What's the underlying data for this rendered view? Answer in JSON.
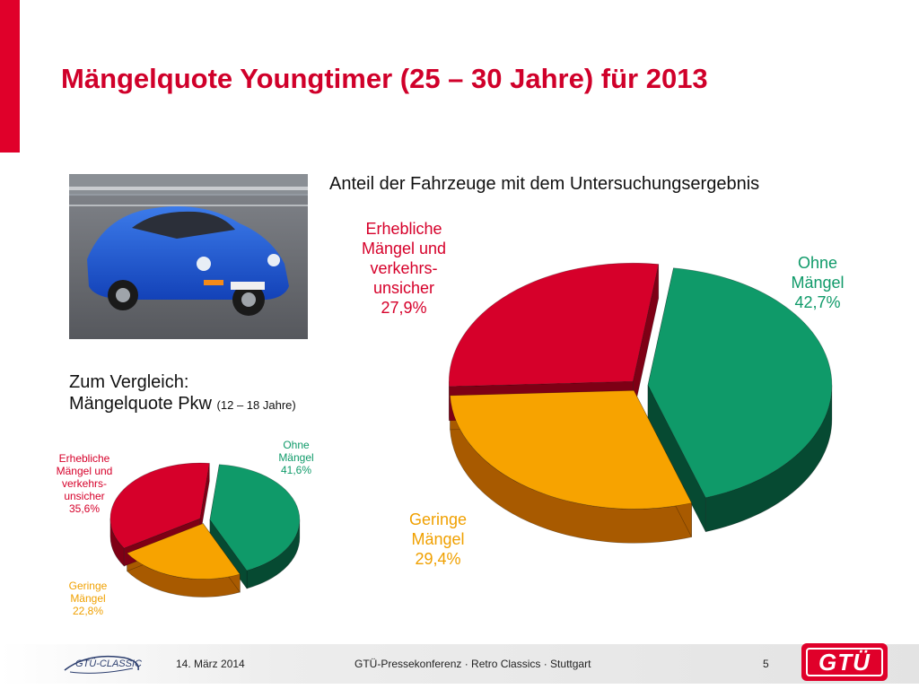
{
  "title": "Mängelquote Youngtimer (25 – 30 Jahre) für 2013",
  "main_chart_heading": "Anteil der Fahrzeuge mit dem Untersuchungsergebnis",
  "comparison_heading": {
    "line1": "Zum Vergleich:",
    "line2": "Mängelquote Pkw",
    "line2_small": "(12 – 18 Jahre)"
  },
  "photo": {
    "subject": "blue Porsche 911 on a road"
  },
  "chart_data": [
    {
      "type": "pie",
      "title": "Mängelquote Youngtimer (25 – 30 Jahre) für 2013",
      "style": "3d-exploded",
      "slices": [
        {
          "label": [
            "Ohne",
            "Mängel"
          ],
          "value": 42.7,
          "value_text": "42,7%",
          "color": "#0f9a69",
          "side_color": "#064a32"
        },
        {
          "label": [
            "Geringe",
            "Mängel"
          ],
          "value": 29.4,
          "value_text": "29,4%",
          "color": "#f7a300",
          "side_color": "#a85a00"
        },
        {
          "label": [
            "Erhebliche",
            "Mängel und",
            "verkehrs-",
            "unsicher"
          ],
          "value": 27.9,
          "value_text": "27,9%",
          "color": "#d6002a",
          "side_color": "#7e0015"
        }
      ]
    },
    {
      "type": "pie",
      "title": "Mängelquote Pkw (12 – 18 Jahre)",
      "style": "3d-exploded",
      "slices": [
        {
          "label": [
            "Ohne",
            "Mängel"
          ],
          "value": 41.6,
          "value_text": "41,6%",
          "color": "#0f9a69",
          "side_color": "#064a32"
        },
        {
          "label": [
            "Geringe",
            "Mängel"
          ],
          "value": 22.8,
          "value_text": "22,8%",
          "color": "#f7a300",
          "side_color": "#a85a00"
        },
        {
          "label": [
            "Erhebliche",
            "Mängel und",
            "verkehrs-",
            "unsicher"
          ],
          "value": 35.6,
          "value_text": "35,6%",
          "color": "#d6002a",
          "side_color": "#7e0015"
        }
      ]
    }
  ],
  "footer": {
    "date": "14. März 2014",
    "event": "GTÜ-Pressekonferenz · Retro Classics · Stuttgart",
    "page": "5",
    "logo_left_text": "GTÜ-CLASSIC",
    "logo_right_text": "GTÜ"
  },
  "colors": {
    "accent": "#e0002a",
    "title": "#d0002a"
  }
}
